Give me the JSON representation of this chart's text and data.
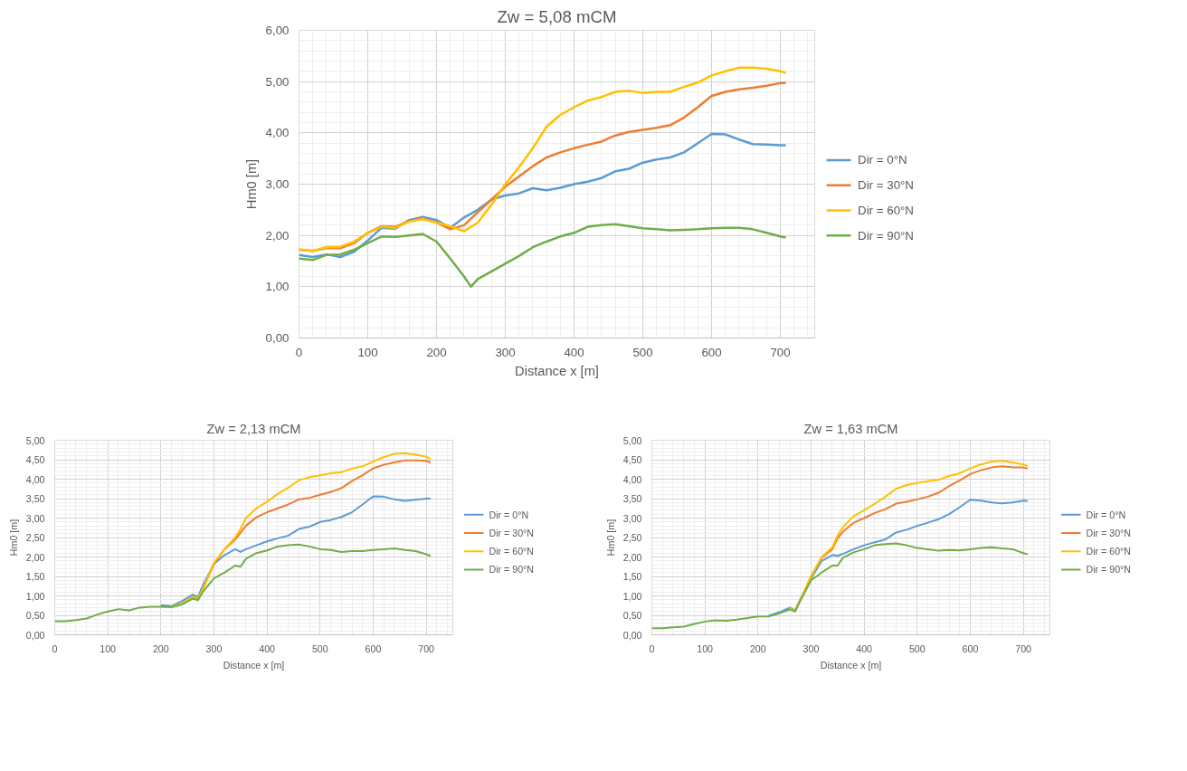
{
  "chart_data": [
    {
      "type": "line",
      "title": "Zw = 5,08 mCM",
      "xlabel": "Distance x [m]",
      "ylabel": "Hm0 [m]",
      "xlim": [
        0,
        750
      ],
      "ylim": [
        0,
        6
      ],
      "xticks": [
        0,
        100,
        200,
        300,
        400,
        500,
        600,
        700
      ],
      "yticks": [
        {
          "value": 0,
          "label": "0,00"
        },
        {
          "value": 1,
          "label": "1,00"
        },
        {
          "value": 2,
          "label": "2,00"
        },
        {
          "value": 3,
          "label": "3,00"
        },
        {
          "value": 4,
          "label": "4,00"
        },
        {
          "value": 5,
          "label": "5,00"
        },
        {
          "value": 6,
          "label": "6,00"
        }
      ],
      "grid": true,
      "legend": "right",
      "marker": "none",
      "line_style": "solid",
      "x": [
        0,
        20,
        40,
        60,
        80,
        100,
        120,
        140,
        160,
        180,
        200,
        220,
        240,
        260,
        280,
        300,
        320,
        340,
        360,
        380,
        400,
        420,
        440,
        460,
        480,
        500,
        520,
        540,
        560,
        580,
        600,
        620,
        640,
        660,
        680,
        700,
        708
      ],
      "series": [
        {
          "name": "Dir = 0°N",
          "color": "#5b9bd5",
          "values": [
            1.62,
            1.58,
            1.63,
            1.58,
            1.68,
            1.9,
            2.15,
            2.13,
            2.3,
            2.36,
            2.3,
            2.15,
            2.35,
            2.5,
            2.7,
            2.78,
            2.82,
            2.92,
            2.88,
            2.93,
            3.0,
            3.05,
            3.12,
            3.25,
            3.3,
            3.42,
            3.48,
            3.52,
            3.62,
            3.8,
            3.98,
            3.97,
            3.87,
            3.78,
            3.77,
            3.76,
            3.76
          ]
        },
        {
          "name": "Dir = 30°N",
          "color": "#ed7d31",
          "values": [
            1.72,
            1.7,
            1.75,
            1.75,
            1.85,
            2.05,
            2.18,
            2.17,
            2.28,
            2.33,
            2.25,
            2.12,
            2.2,
            2.45,
            2.7,
            2.95,
            3.15,
            3.35,
            3.52,
            3.62,
            3.7,
            3.77,
            3.83,
            3.95,
            4.02,
            4.06,
            4.1,
            4.15,
            4.3,
            4.5,
            4.72,
            4.8,
            4.85,
            4.88,
            4.92,
            4.97,
            4.97
          ]
        },
        {
          "name": "Dir = 60°N",
          "color": "#ffc000",
          "values": [
            1.73,
            1.7,
            1.77,
            1.78,
            1.88,
            2.05,
            2.17,
            2.15,
            2.27,
            2.32,
            2.25,
            2.18,
            2.08,
            2.25,
            2.6,
            3.0,
            3.33,
            3.7,
            4.12,
            4.35,
            4.5,
            4.63,
            4.7,
            4.8,
            4.82,
            4.78,
            4.8,
            4.8,
            4.9,
            4.98,
            5.12,
            5.2,
            5.27,
            5.27,
            5.25,
            5.2,
            5.17
          ]
        },
        {
          "name": "Dir = 90°N",
          "color": "#70ad47",
          "x": [
            0,
            20,
            40,
            60,
            80,
            100,
            120,
            140,
            160,
            180,
            200,
            220,
            240,
            250,
            260,
            280,
            300,
            320,
            340,
            360,
            380,
            400,
            420,
            440,
            460,
            480,
            500,
            520,
            540,
            560,
            580,
            600,
            620,
            640,
            660,
            680,
            700,
            708
          ],
          "values": [
            1.55,
            1.52,
            1.62,
            1.63,
            1.72,
            1.85,
            1.98,
            1.97,
            2.0,
            2.03,
            1.88,
            1.55,
            1.2,
            1.0,
            1.15,
            1.3,
            1.45,
            1.6,
            1.77,
            1.88,
            1.98,
            2.05,
            2.17,
            2.2,
            2.22,
            2.18,
            2.14,
            2.12,
            2.1,
            2.11,
            2.12,
            2.14,
            2.15,
            2.15,
            2.12,
            2.05,
            1.98,
            1.96
          ]
        }
      ]
    },
    {
      "type": "line",
      "title": "Zw = 2,13 mCM",
      "xlabel": "Distance x [m]",
      "ylabel": "Hm0 [m]",
      "xlim": [
        0,
        750
      ],
      "ylim": [
        0,
        5
      ],
      "xticks": [
        0,
        100,
        200,
        300,
        400,
        500,
        600,
        700
      ],
      "yticks": [
        {
          "value": 0,
          "label": "0,00"
        },
        {
          "value": 0.5,
          "label": "0,50"
        },
        {
          "value": 1,
          "label": "1,00"
        },
        {
          "value": 1.5,
          "label": "1,50"
        },
        {
          "value": 2,
          "label": "2,00"
        },
        {
          "value": 2.5,
          "label": "2,50"
        },
        {
          "value": 3,
          "label": "3,00"
        },
        {
          "value": 3.5,
          "label": "3,50"
        },
        {
          "value": 4,
          "label": "4,00"
        },
        {
          "value": 4.5,
          "label": "4,50"
        },
        {
          "value": 5,
          "label": "5,00"
        }
      ],
      "grid": true,
      "legend": "right",
      "marker": "none",
      "line_style": "solid",
      "x": [
        0,
        20,
        40,
        60,
        80,
        100,
        120,
        140,
        160,
        180,
        200,
        220,
        240,
        260,
        270,
        280,
        300,
        320,
        340,
        350,
        360,
        380,
        400,
        420,
        440,
        460,
        480,
        500,
        520,
        540,
        560,
        580,
        600,
        620,
        640,
        660,
        680,
        700,
        708
      ],
      "series": [
        {
          "name": "Dir = 0°N",
          "color": "#5b9bd5",
          "values": [
            null,
            null,
            null,
            null,
            null,
            null,
            null,
            null,
            null,
            null,
            0.76,
            0.74,
            0.87,
            1.03,
            0.98,
            1.3,
            1.82,
            2.05,
            2.2,
            2.13,
            2.2,
            2.3,
            2.4,
            2.48,
            2.55,
            2.72,
            2.78,
            2.9,
            2.95,
            3.03,
            3.15,
            3.35,
            3.56,
            3.55,
            3.48,
            3.44,
            3.47,
            3.5,
            3.5
          ]
        },
        {
          "name": "Dir = 30°N",
          "color": "#ed7d31",
          "values": [
            null,
            null,
            null,
            null,
            null,
            null,
            null,
            null,
            null,
            null,
            null,
            0.72,
            0.8,
            0.97,
            0.93,
            1.2,
            1.82,
            2.2,
            2.45,
            2.62,
            2.8,
            3.02,
            3.15,
            3.25,
            3.35,
            3.48,
            3.52,
            3.6,
            3.67,
            3.77,
            3.95,
            4.1,
            4.28,
            4.37,
            4.43,
            4.48,
            4.48,
            4.47,
            4.43
          ]
        },
        {
          "name": "Dir = 60°N",
          "color": "#ffc000",
          "values": [
            null,
            null,
            null,
            null,
            null,
            null,
            null,
            null,
            null,
            null,
            null,
            0.73,
            0.8,
            0.97,
            0.93,
            1.2,
            1.85,
            2.2,
            2.5,
            2.72,
            3.0,
            3.25,
            3.42,
            3.62,
            3.78,
            3.97,
            4.05,
            4.1,
            4.15,
            4.18,
            4.27,
            4.33,
            4.45,
            4.57,
            4.65,
            4.67,
            4.63,
            4.58,
            4.52
          ]
        },
        {
          "name": "Dir = 90°N",
          "color": "#70ad47",
          "values": [
            0.35,
            0.35,
            0.38,
            0.42,
            0.52,
            0.6,
            0.66,
            0.63,
            0.7,
            0.72,
            0.72,
            0.71,
            0.78,
            0.93,
            0.89,
            1.12,
            1.45,
            1.6,
            1.78,
            1.75,
            1.95,
            2.1,
            2.17,
            2.27,
            2.3,
            2.32,
            2.27,
            2.2,
            2.18,
            2.13,
            2.15,
            2.15,
            2.18,
            2.2,
            2.22,
            2.18,
            2.15,
            2.07,
            2.03
          ]
        }
      ]
    },
    {
      "type": "line",
      "title": "Zw = 1,63 mCM",
      "xlabel": "Distance x [m]",
      "ylabel": "Hm0 [m]",
      "xlim": [
        0,
        750
      ],
      "ylim": [
        0,
        5
      ],
      "xticks": [
        0,
        100,
        200,
        300,
        400,
        500,
        600,
        700
      ],
      "yticks": [
        {
          "value": 0,
          "label": "0,00"
        },
        {
          "value": 0.5,
          "label": "0,50"
        },
        {
          "value": 1,
          "label": "1,00"
        },
        {
          "value": 1.5,
          "label": "1,50"
        },
        {
          "value": 2,
          "label": "2,00"
        },
        {
          "value": 2.5,
          "label": "2,50"
        },
        {
          "value": 3,
          "label": "3,00"
        },
        {
          "value": 3.5,
          "label": "3,50"
        },
        {
          "value": 4,
          "label": "4,00"
        },
        {
          "value": 4.5,
          "label": "4,50"
        },
        {
          "value": 5,
          "label": "5,00"
        }
      ],
      "grid": true,
      "legend": "right",
      "marker": "none",
      "line_style": "solid",
      "x": [
        0,
        20,
        40,
        60,
        80,
        100,
        120,
        140,
        160,
        180,
        200,
        220,
        240,
        260,
        270,
        280,
        300,
        320,
        340,
        350,
        360,
        380,
        400,
        420,
        440,
        460,
        480,
        500,
        520,
        540,
        560,
        580,
        600,
        620,
        640,
        660,
        680,
        700,
        708
      ],
      "series": [
        {
          "name": "Dir = 0°N",
          "color": "#5b9bd5",
          "values": [
            null,
            null,
            null,
            null,
            null,
            null,
            null,
            null,
            null,
            null,
            null,
            0.49,
            0.58,
            0.7,
            0.63,
            0.92,
            1.45,
            1.9,
            2.05,
            2.03,
            2.08,
            2.2,
            2.3,
            2.38,
            2.45,
            2.63,
            2.7,
            2.8,
            2.88,
            2.97,
            3.1,
            3.28,
            3.47,
            3.45,
            3.4,
            3.38,
            3.4,
            3.45,
            3.44
          ]
        },
        {
          "name": "Dir = 30°N",
          "color": "#ed7d31",
          "values": [
            null,
            null,
            null,
            null,
            null,
            null,
            null,
            null,
            null,
            null,
            null,
            null,
            null,
            0.68,
            0.62,
            0.9,
            1.5,
            1.98,
            2.2,
            2.48,
            2.65,
            2.88,
            3.0,
            3.13,
            3.23,
            3.37,
            3.42,
            3.48,
            3.55,
            3.65,
            3.82,
            3.97,
            4.13,
            4.23,
            4.3,
            4.33,
            4.3,
            4.3,
            4.27
          ]
        },
        {
          "name": "Dir = 60°N",
          "color": "#ffc000",
          "values": [
            null,
            null,
            null,
            null,
            null,
            null,
            null,
            null,
            null,
            null,
            null,
            null,
            null,
            0.68,
            0.62,
            0.9,
            1.5,
            2.0,
            2.25,
            2.55,
            2.77,
            3.05,
            3.2,
            3.37,
            3.55,
            3.75,
            3.85,
            3.9,
            3.95,
            3.98,
            4.08,
            4.15,
            4.28,
            4.38,
            4.45,
            4.47,
            4.43,
            4.38,
            4.33
          ]
        },
        {
          "name": "Dir = 90°N",
          "color": "#70ad47",
          "values": [
            0.17,
            0.17,
            0.19,
            0.21,
            0.28,
            0.34,
            0.37,
            0.36,
            0.39,
            0.43,
            0.47,
            0.47,
            0.55,
            0.65,
            0.6,
            0.88,
            1.4,
            1.6,
            1.78,
            1.78,
            1.98,
            2.12,
            2.2,
            2.3,
            2.33,
            2.35,
            2.3,
            2.23,
            2.2,
            2.16,
            2.18,
            2.17,
            2.2,
            2.23,
            2.25,
            2.22,
            2.2,
            2.1,
            2.07
          ]
        }
      ]
    }
  ]
}
